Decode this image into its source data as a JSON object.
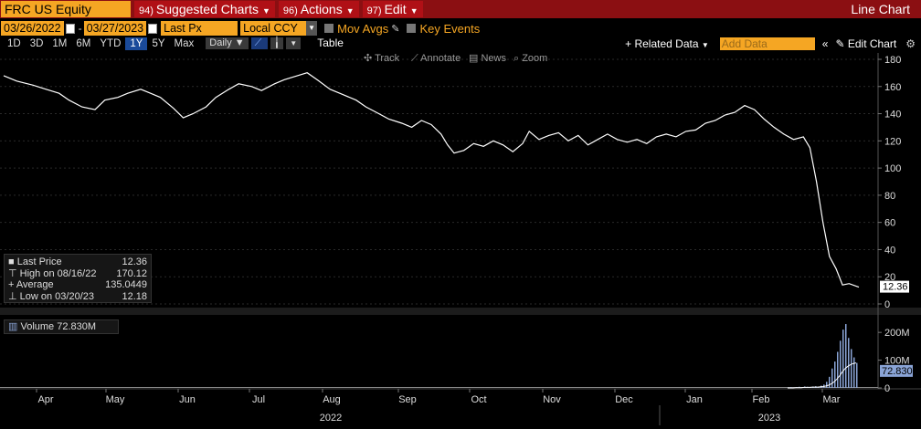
{
  "titlebar": {
    "ticker": "FRC US Equity",
    "menus": [
      {
        "num": "94)",
        "label": "Suggested Charts"
      },
      {
        "num": "96)",
        "label": "Actions"
      },
      {
        "num": "97)",
        "label": "Edit"
      }
    ],
    "chart_type": "Line Chart"
  },
  "controls": {
    "start_date": "03/26/2022",
    "end_date": "03/27/2023",
    "field": "Last Px",
    "currency": "Local CCY",
    "mov_avgs": "Mov Avgs",
    "key_events": "Key Events"
  },
  "timeframes": [
    {
      "label": "1D",
      "active": false
    },
    {
      "label": "3D",
      "active": false
    },
    {
      "label": "1M",
      "active": false
    },
    {
      "label": "6M",
      "active": false
    },
    {
      "label": "YTD",
      "active": false
    },
    {
      "label": "1Y",
      "active": true
    },
    {
      "label": "5Y",
      "active": false
    },
    {
      "label": "Max",
      "active": false
    }
  ],
  "toolbar": {
    "period": "Daily ▼",
    "table": "Table",
    "related_data": "+ Related Data",
    "add_data_placeholder": "Add Data",
    "edit_chart": "Edit Chart"
  },
  "chart_tools": [
    "Track",
    "Annotate",
    "News",
    "Zoom"
  ],
  "legend": {
    "last_price_label": "Last Price",
    "last_price": "12.36",
    "high_label": "High on 08/16/22",
    "high": "170.12",
    "average_label": "Average",
    "average": "135.0449",
    "low_label": "Low on 03/20/23",
    "low": "12.18",
    "volume_label": "Volume",
    "volume": "72.830M"
  },
  "colors": {
    "title_bg": "#8b0f12",
    "accent": "#f5a623",
    "line": "#ffffff",
    "volume_bar": "#8aa4d6"
  },
  "chart_data": [
    {
      "type": "line",
      "series": [
        {
          "name": "Last Price"
        }
      ],
      "ylim": [
        0,
        180
      ],
      "yticks": [
        "180",
        "160",
        "140",
        "120",
        "100",
        "80",
        "60",
        "40",
        "20",
        "0"
      ],
      "last_value_label": "12.36",
      "points": [
        [
          0,
          168
        ],
        [
          4,
          164
        ],
        [
          9,
          161
        ],
        [
          13,
          158
        ],
        [
          17,
          155
        ],
        [
          20,
          150
        ],
        [
          24,
          145
        ],
        [
          28,
          143
        ],
        [
          31,
          150
        ],
        [
          35,
          152
        ],
        [
          38,
          155
        ],
        [
          42,
          158
        ],
        [
          45,
          155
        ],
        [
          48,
          152
        ],
        [
          52,
          144
        ],
        [
          55,
          137
        ],
        [
          58,
          140
        ],
        [
          62,
          145
        ],
        [
          65,
          152
        ],
        [
          69,
          158
        ],
        [
          72,
          162
        ],
        [
          76,
          160
        ],
        [
          79,
          157
        ],
        [
          83,
          162
        ],
        [
          86,
          165
        ],
        [
          90,
          168
        ],
        [
          93,
          170.12
        ],
        [
          96,
          165
        ],
        [
          100,
          158
        ],
        [
          104,
          154
        ],
        [
          108,
          150
        ],
        [
          111,
          145
        ],
        [
          115,
          140
        ],
        [
          118,
          136
        ],
        [
          122,
          133
        ],
        [
          125,
          130
        ],
        [
          128,
          135
        ],
        [
          131,
          132
        ],
        [
          134,
          125
        ],
        [
          136,
          117
        ],
        [
          138,
          111
        ],
        [
          141,
          113
        ],
        [
          144,
          118
        ],
        [
          147,
          116
        ],
        [
          150,
          120
        ],
        [
          153,
          117
        ],
        [
          156,
          112
        ],
        [
          159,
          118
        ],
        [
          161,
          127
        ],
        [
          164,
          121
        ],
        [
          167,
          124
        ],
        [
          170,
          126
        ],
        [
          173,
          120
        ],
        [
          176,
          124
        ],
        [
          179,
          117
        ],
        [
          182,
          121
        ],
        [
          185,
          125
        ],
        [
          188,
          121
        ],
        [
          191,
          119
        ],
        [
          194,
          121
        ],
        [
          197,
          118
        ],
        [
          200,
          123
        ],
        [
          203,
          125
        ],
        [
          206,
          123
        ],
        [
          209,
          127
        ],
        [
          212,
          128
        ],
        [
          215,
          133
        ],
        [
          218,
          135
        ],
        [
          221,
          139
        ],
        [
          224,
          141
        ],
        [
          227,
          146
        ],
        [
          230,
          143
        ],
        [
          233,
          136
        ],
        [
          236,
          130
        ],
        [
          239,
          125
        ],
        [
          242,
          121
        ],
        [
          245,
          123
        ],
        [
          247,
          115
        ],
        [
          249,
          90
        ],
        [
          251,
          60
        ],
        [
          253,
          35
        ],
        [
          255,
          26
        ],
        [
          257,
          14
        ],
        [
          259,
          15
        ],
        [
          262,
          12.36
        ]
      ]
    },
    {
      "type": "bar",
      "series": [
        {
          "name": "Volume",
          "values": [
            2,
            3,
            2,
            3,
            4,
            3,
            5,
            4,
            3,
            5,
            6,
            4,
            8,
            12,
            22,
            40,
            70,
            95,
            130,
            170,
            210,
            230,
            180,
            140,
            110,
            90
          ]
        }
      ],
      "ylim": [
        0,
        240
      ],
      "yticks": [
        "200M",
        "100M",
        "0"
      ],
      "last_value_label": "72.830M",
      "xticks": [
        "Apr",
        "May",
        "Jun",
        "Jul",
        "Aug",
        "Sep",
        "Oct",
        "Nov",
        "Dec",
        "Jan",
        "Feb",
        "Mar"
      ],
      "year_labels": [
        "2022",
        "2023"
      ]
    }
  ]
}
